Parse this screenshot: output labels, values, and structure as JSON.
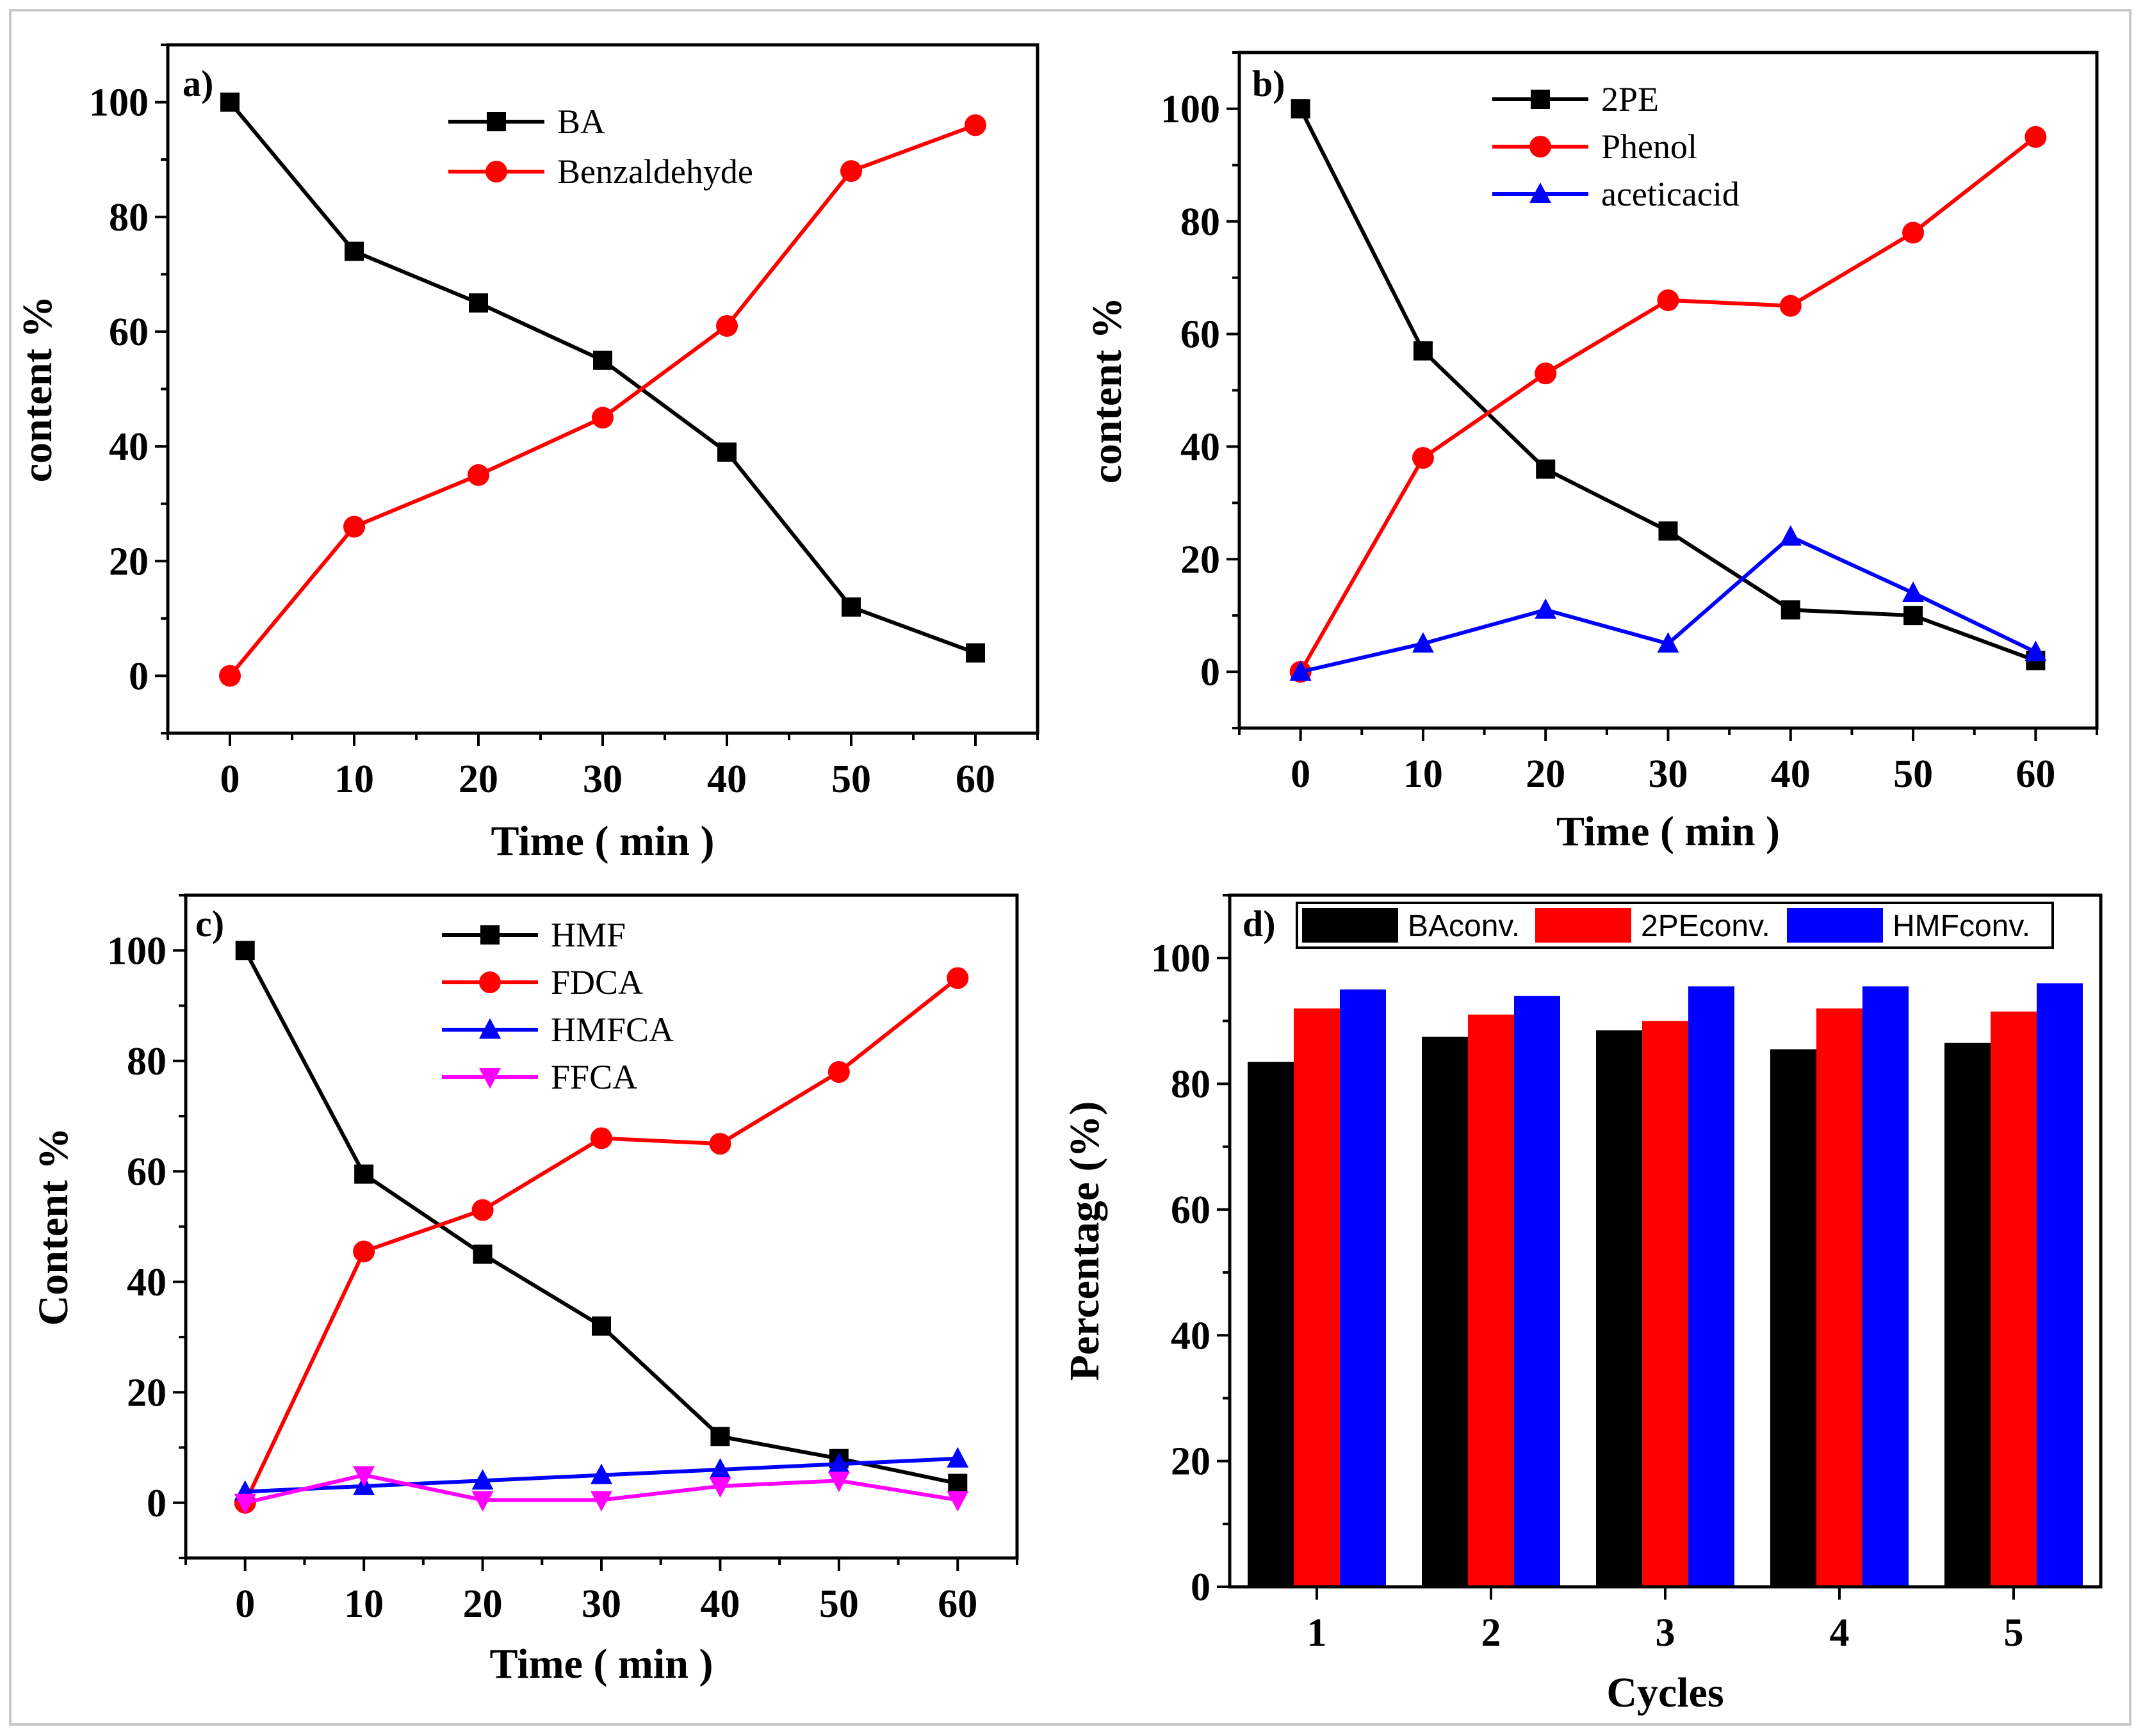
{
  "chart_data": [
    {
      "panel": "a)",
      "type": "line",
      "xlabel": "Time ( min )",
      "ylabel": "content %",
      "xlim": [
        -5,
        65
      ],
      "ylim": [
        -10,
        110
      ],
      "xticks": [
        0,
        10,
        20,
        30,
        40,
        50,
        60
      ],
      "yticks": [
        0,
        20,
        40,
        60,
        80,
        100
      ],
      "x": [
        0,
        10,
        20,
        30,
        40,
        50,
        60
      ],
      "legend_position": "top-center",
      "series": [
        {
          "name": "BA",
          "color": "#000000",
          "marker": "square",
          "values": [
            100,
            74,
            65,
            55,
            39,
            12,
            4
          ]
        },
        {
          "name": "Benzaldehyde",
          "color": "#ff0000",
          "marker": "circle",
          "values": [
            0,
            26,
            35,
            45,
            61,
            88,
            96
          ]
        }
      ]
    },
    {
      "panel": "b)",
      "type": "line",
      "xlabel": "Time ( min )",
      "ylabel": "content %",
      "xlim": [
        -5,
        65
      ],
      "ylim": [
        -10,
        110
      ],
      "xticks": [
        0,
        10,
        20,
        30,
        40,
        50,
        60
      ],
      "yticks": [
        0,
        20,
        40,
        60,
        80,
        100
      ],
      "x": [
        0,
        10,
        20,
        30,
        40,
        50,
        60
      ],
      "legend_position": "top-center",
      "series": [
        {
          "name": "2PE",
          "color": "#000000",
          "marker": "square",
          "values": [
            100,
            57,
            36,
            25,
            11,
            10,
            2
          ]
        },
        {
          "name": "Phenol",
          "color": "#ff0000",
          "marker": "circle",
          "values": [
            0,
            38,
            53,
            66,
            65,
            78,
            95
          ]
        },
        {
          "name": "aceticacid",
          "color": "#0000ff",
          "marker": "triangle-up",
          "values": [
            0,
            5,
            11,
            5,
            24,
            14,
            3.5
          ]
        }
      ]
    },
    {
      "panel": "c)",
      "type": "line",
      "xlabel": "Time ( min )",
      "ylabel": "Content %",
      "xlim": [
        -5,
        65
      ],
      "ylim": [
        -10,
        110
      ],
      "xticks": [
        0,
        10,
        20,
        30,
        40,
        50,
        60
      ],
      "yticks": [
        0,
        20,
        40,
        60,
        80,
        100
      ],
      "x": [
        0,
        10,
        20,
        30,
        40,
        50,
        60
      ],
      "legend_position": "top-center",
      "series": [
        {
          "name": "HMF",
          "color": "#000000",
          "marker": "square",
          "values": [
            100,
            59.5,
            45,
            32,
            12,
            8,
            3.5
          ]
        },
        {
          "name": "FDCA",
          "color": "#ff0000",
          "marker": "circle",
          "values": [
            0,
            45.5,
            53,
            66,
            65,
            78,
            95
          ]
        },
        {
          "name": "HMFCA",
          "color": "#0000ff",
          "marker": "triangle-up",
          "values": [
            2,
            3,
            4,
            5,
            6,
            7,
            8
          ]
        },
        {
          "name": "FFCA",
          "color": "#ff00ff",
          "marker": "triangle-down",
          "values": [
            0,
            5,
            0.5,
            0.5,
            3,
            4,
            0.5
          ]
        }
      ]
    },
    {
      "panel": "d)",
      "type": "bar",
      "xlabel": "Cycles",
      "ylabel": "Percentage (%)",
      "ylim": [
        0,
        110
      ],
      "yticks": [
        0,
        20,
        40,
        60,
        80,
        100
      ],
      "categories": [
        "1",
        "2",
        "3",
        "4",
        "5"
      ],
      "legend_position": "top",
      "series": [
        {
          "name": "BAconv.",
          "color": "#000000",
          "values": [
            83.5,
            87.5,
            88.5,
            85.5,
            86.5
          ]
        },
        {
          "name": "2PEconv.",
          "color": "#ff0000",
          "values": [
            92,
            91,
            90,
            92,
            91.5
          ]
        },
        {
          "name": "HMFconv.",
          "color": "#0000ff",
          "values": [
            95,
            94,
            95.5,
            95.5,
            96
          ]
        }
      ]
    }
  ]
}
